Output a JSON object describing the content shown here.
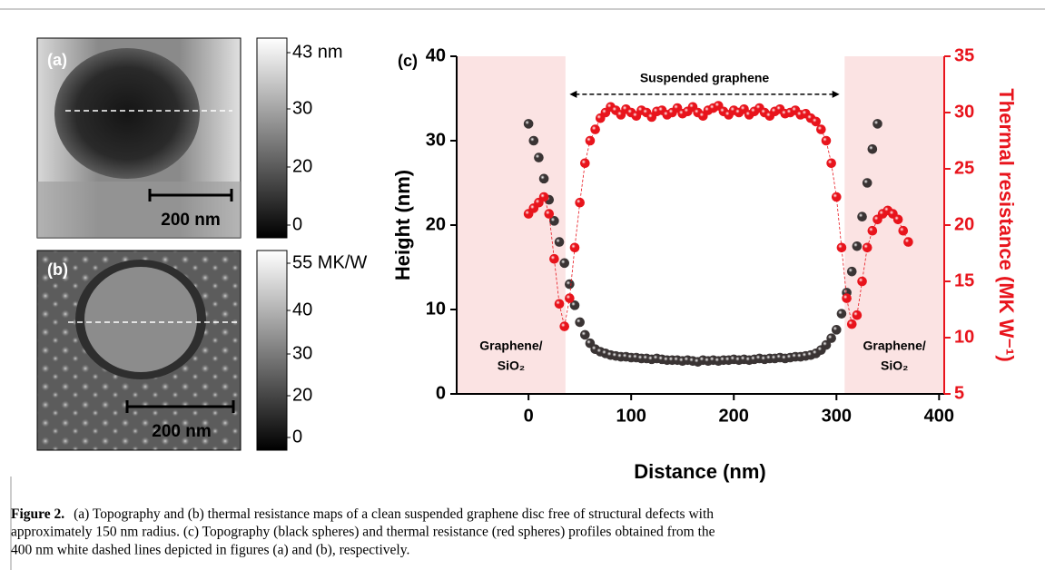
{
  "panels": [
    {
      "label": "(a)",
      "scale_bar": "200 nm",
      "colorbar_labels": [
        "43 nm",
        "30",
        "20",
        "0"
      ]
    },
    {
      "label": "(b)",
      "scale_bar": "200 nm",
      "colorbar_labels": [
        "55 MK/W",
        "40",
        "30",
        "20",
        "0"
      ]
    }
  ],
  "chart_data": {
    "type": "scatter",
    "panel_label": "(c)",
    "x_label": "Distance (nm)",
    "y_label": "Height (nm)",
    "y2_label": "Thermal resistance (MK W⁻¹)",
    "xlim": [
      -70,
      405
    ],
    "xticks": [
      0,
      100,
      200,
      300,
      400
    ],
    "ylim": [
      0,
      40
    ],
    "yticks": [
      0,
      10,
      20,
      30,
      40
    ],
    "y2lim": [
      5,
      35
    ],
    "y2ticks": [
      5,
      10,
      15,
      20,
      25,
      30,
      35
    ],
    "y2_color": "#e8141c",
    "shaded_regions": [
      {
        "from": -70,
        "to": 36,
        "label": [
          "Graphene/",
          "SiO₂"
        ]
      },
      {
        "from": 308,
        "to": 405,
        "label": [
          "Graphene/",
          "SiO₂"
        ]
      }
    ],
    "shade_color": "#fbe3e3",
    "arrow": {
      "from": 40,
      "to": 303,
      "y": 35.5,
      "label": "Suspended graphene"
    },
    "series": [
      {
        "color": "#3a3434",
        "x": [
          0,
          5,
          10,
          15,
          20,
          25,
          30,
          35,
          40,
          45,
          50,
          55,
          60,
          65,
          70,
          75,
          80,
          85,
          90,
          95,
          100,
          105,
          110,
          115,
          120,
          125,
          130,
          135,
          140,
          145,
          150,
          155,
          160,
          165,
          170,
          175,
          180,
          185,
          190,
          195,
          200,
          205,
          210,
          215,
          220,
          225,
          230,
          235,
          240,
          245,
          250,
          255,
          260,
          265,
          270,
          275,
          280,
          285,
          290,
          295,
          300,
          305,
          310,
          315,
          320,
          325,
          330,
          335,
          340
        ],
        "values": [
          32,
          30,
          28,
          25.5,
          23,
          20.5,
          18,
          15.5,
          13,
          10.5,
          8.5,
          7,
          6,
          5.3,
          5,
          4.8,
          4.6,
          4.5,
          4.4,
          4.4,
          4.3,
          4.3,
          4.2,
          4.2,
          4.1,
          4.2,
          4.1,
          4,
          4,
          4,
          3.9,
          4,
          3.9,
          3.8,
          4,
          3.9,
          4,
          3.9,
          4,
          4,
          4.1,
          4,
          4.1,
          4,
          4.1,
          4.2,
          4.1,
          4.2,
          4.2,
          4.3,
          4.2,
          4.3,
          4.4,
          4.4,
          4.5,
          4.6,
          4.8,
          5.2,
          5.8,
          6.6,
          7.6,
          9.5,
          12,
          14.5,
          17.5,
          21,
          25,
          29,
          32
        ]
      },
      {
        "color": "#e8141c",
        "axis": "y2",
        "x": [
          0,
          5,
          10,
          15,
          20,
          25,
          30,
          35,
          40,
          45,
          50,
          55,
          60,
          65,
          70,
          75,
          80,
          85,
          90,
          95,
          100,
          105,
          110,
          115,
          120,
          125,
          130,
          135,
          140,
          145,
          150,
          155,
          160,
          165,
          170,
          175,
          180,
          185,
          190,
          195,
          200,
          205,
          210,
          215,
          220,
          225,
          230,
          235,
          240,
          245,
          250,
          255,
          260,
          265,
          270,
          275,
          280,
          285,
          290,
          295,
          300,
          305,
          310,
          315,
          320,
          325,
          330,
          335,
          340,
          345,
          350,
          355,
          360,
          365,
          370
        ],
        "values": [
          21,
          21.5,
          22,
          22.5,
          21,
          17,
          13,
          11,
          13.5,
          18,
          22,
          25.5,
          27.5,
          28.5,
          29.5,
          30,
          30.5,
          30.2,
          29.8,
          30.3,
          30,
          29.7,
          30.2,
          30,
          29.6,
          30.1,
          30.2,
          29.8,
          30,
          30.4,
          29.9,
          30.1,
          30.5,
          30,
          29.7,
          30.2,
          30.4,
          30.6,
          30.1,
          29.8,
          30.2,
          30,
          30.3,
          29.8,
          30.1,
          30.4,
          30,
          29.7,
          30.1,
          30.3,
          29.9,
          30,
          30.2,
          29.8,
          29.9,
          29.5,
          29.2,
          28.5,
          27.5,
          25.5,
          22.5,
          18,
          13.5,
          11.2,
          12,
          15,
          18,
          19.5,
          20.5,
          21,
          21.3,
          21,
          20.5,
          19.5,
          18.5
        ]
      }
    ]
  },
  "caption": {
    "label": "Figure 2.",
    "lines": [
      "(a) Topography and (b) thermal resistance maps of a clean suspended graphene disc free of structural defects with",
      "approximately 150 nm radius. (c) Topography (black spheres) and thermal resistance (red spheres) profiles obtained from the",
      "400 nm white dashed lines depicted in figures (a) and (b), respectively."
    ]
  }
}
